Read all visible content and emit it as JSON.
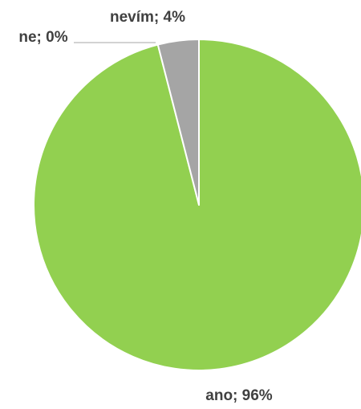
{
  "chart_data": {
    "type": "pie",
    "slices": [
      {
        "label": "ano",
        "percent": 96,
        "value_label": "96%",
        "color": "#92D050"
      },
      {
        "label": "ne",
        "percent": 0,
        "value_label": "0%",
        "color": "#ED7D31"
      },
      {
        "label": "nevím",
        "percent": 4,
        "value_label": "4%",
        "color": "#A5A5A5"
      }
    ],
    "data_label_color": "#404040",
    "slice_border_color": "#ffffff",
    "leader_line_color": "#A6A6A6"
  }
}
